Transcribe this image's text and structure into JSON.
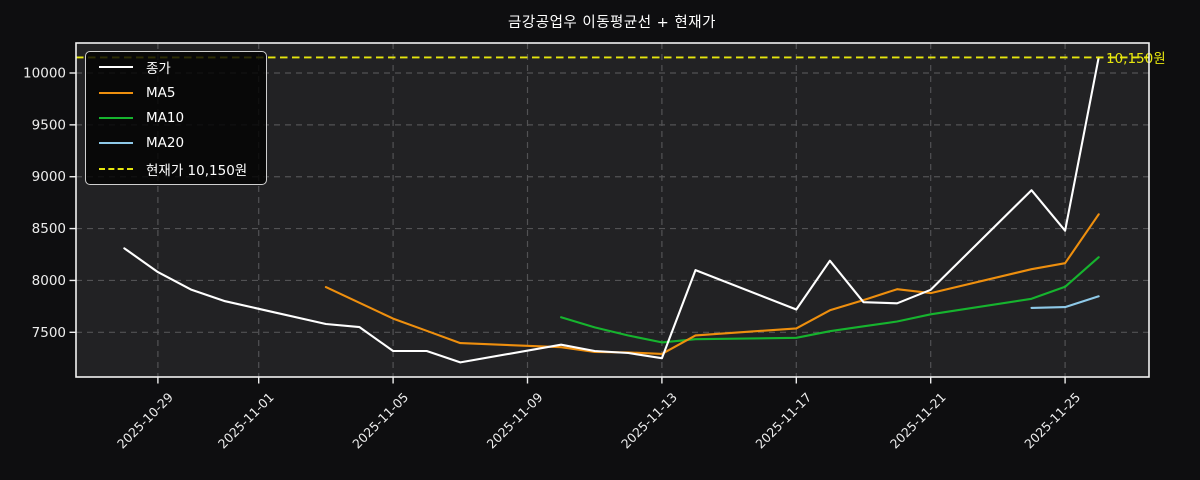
{
  "title": "금강공업우 이동평균선 + 현재가",
  "chart_data": {
    "type": "line",
    "x": [
      "2025-10-28",
      "2025-10-29",
      "2025-10-30",
      "2025-10-31",
      "2025-11-03",
      "2025-11-04",
      "2025-11-05",
      "2025-11-06",
      "2025-11-07",
      "2025-11-10",
      "2025-11-11",
      "2025-11-12",
      "2025-11-13",
      "2025-11-14",
      "2025-11-17",
      "2025-11-18",
      "2025-11-19",
      "2025-11-20",
      "2025-11-21",
      "2025-11-24",
      "2025-11-25",
      "2025-11-26"
    ],
    "series": [
      {
        "id": "close",
        "name": "종가",
        "color": "#ffffff",
        "values": [
          8310,
          8080,
          7910,
          7800,
          7580,
          7550,
          7320,
          7320,
          7210,
          7380,
          7320,
          7300,
          7250,
          8100,
          7720,
          8190,
          7790,
          7780,
          7910,
          8870,
          8480,
          10150
        ]
      },
      {
        "id": "ma5",
        "name": "MA5",
        "color": "#ee8f0e",
        "values": [
          null,
          null,
          null,
          null,
          7936,
          7784,
          7632,
          7514,
          7396,
          7356,
          7310,
          7306,
          7292,
          7470,
          7538,
          7712,
          7810,
          7916,
          7878,
          8108,
          8166,
          8638
        ]
      },
      {
        "id": "ma10",
        "name": "MA10",
        "color": "#16b42e",
        "values": [
          null,
          null,
          null,
          null,
          null,
          null,
          null,
          null,
          null,
          7646,
          7547,
          7469,
          7403,
          7433,
          7447,
          7511,
          7558,
          7604,
          7674,
          7823,
          7939,
          8224
        ]
      },
      {
        "id": "ma20",
        "name": "MA20",
        "color": "#8ec9e8",
        "values": [
          null,
          null,
          null,
          null,
          null,
          null,
          null,
          null,
          null,
          null,
          null,
          null,
          null,
          null,
          null,
          null,
          null,
          null,
          null,
          7735,
          7743,
          7847
        ]
      }
    ],
    "current_price": {
      "value": 10150,
      "label": "현재가 10,150원",
      "annotation": "10,150원",
      "color": "#e6e60e"
    },
    "y_ticks": [
      7500,
      8000,
      8500,
      9000,
      9500,
      10000
    ],
    "x_ticks": [
      "2025-10-29",
      "2025-11-01",
      "2025-11-05",
      "2025-11-09",
      "2025-11-13",
      "2025-11-17",
      "2025-11-21",
      "2025-11-25"
    ],
    "ylim": [
      7069,
      10289
    ],
    "grid": true,
    "legend_position": "upper-left",
    "plot_bg": "#222224",
    "figure_bg": "#0e0e10"
  }
}
